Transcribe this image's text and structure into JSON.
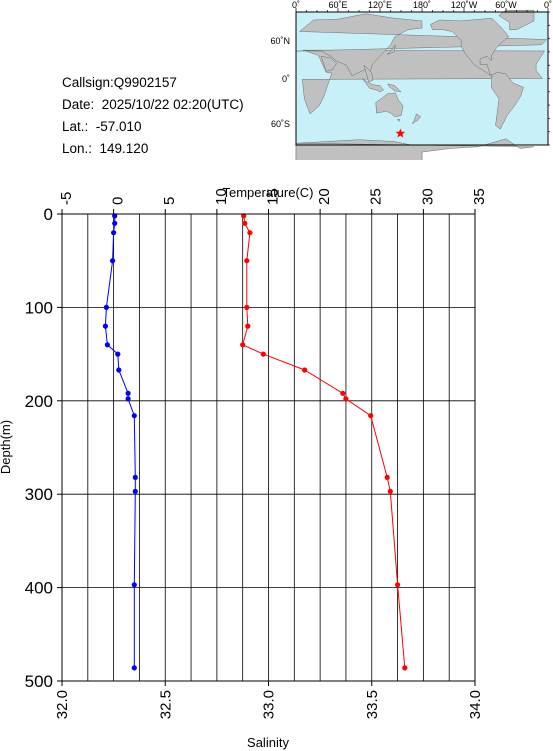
{
  "header": {
    "callsign_line": "Callsign:Q9902157",
    "date_line": "Date:  2025/10/22 02:20(UTC)",
    "lat_line": "Lat.:  -57.010",
    "lon_line": "Lon.:  149.120"
  },
  "map": {
    "top_labels": [
      "0˚",
      "60˚E",
      "120˚E",
      "180˚",
      "120˚W",
      "60˚W",
      "0˚"
    ],
    "right_labels": [
      "60˚N",
      "0˚",
      "60˚S"
    ],
    "marker_lon": 149.12,
    "marker_lat": -57.01,
    "ocean_color": "#c8f0f8",
    "land_color": "#c0c0c0",
    "marker_color": "#ff0000"
  },
  "chart_data": {
    "type": "line",
    "top_axis": {
      "label": "Temperature(C)",
      "range": [
        -5,
        35
      ],
      "ticks": [
        "-5",
        "0",
        "5",
        "10",
        "15",
        "20",
        "25",
        "30",
        "35"
      ]
    },
    "bottom_axis": {
      "label": "Salinity",
      "range": [
        32.0,
        34.0
      ],
      "ticks": [
        "32.0",
        "32.5",
        "33.0",
        "33.5",
        "34.0"
      ]
    },
    "y_axis": {
      "label": "Depth(m)",
      "range": [
        0,
        500
      ],
      "inverted": true,
      "ticks": [
        "0",
        "100",
        "200",
        "300",
        "400",
        "500"
      ]
    },
    "grid": true,
    "series": [
      {
        "axis": "top",
        "color": "#ff0000",
        "points": [
          {
            "x": 12.6,
            "y": 2
          },
          {
            "x": 12.7,
            "y": 10
          },
          {
            "x": 13.2,
            "y": 20
          },
          {
            "x": 12.9,
            "y": 50
          },
          {
            "x": 12.9,
            "y": 100
          },
          {
            "x": 13.0,
            "y": 120
          },
          {
            "x": 12.5,
            "y": 140
          },
          {
            "x": 14.5,
            "y": 150
          },
          {
            "x": 18.5,
            "y": 167
          },
          {
            "x": 22.2,
            "y": 192
          },
          {
            "x": 22.5,
            "y": 198
          },
          {
            "x": 24.9,
            "y": 216
          },
          {
            "x": 26.5,
            "y": 282
          },
          {
            "x": 26.8,
            "y": 297
          },
          {
            "x": 27.5,
            "y": 397
          },
          {
            "x": 28.2,
            "y": 486
          }
        ]
      },
      {
        "axis": "bottom",
        "color": "#0000ff",
        "points": [
          {
            "x": 32.255,
            "y": 2
          },
          {
            "x": 32.255,
            "y": 10
          },
          {
            "x": 32.25,
            "y": 20
          },
          {
            "x": 32.245,
            "y": 50
          },
          {
            "x": 32.215,
            "y": 100
          },
          {
            "x": 32.21,
            "y": 120
          },
          {
            "x": 32.22,
            "y": 140
          },
          {
            "x": 32.27,
            "y": 150
          },
          {
            "x": 32.275,
            "y": 167
          },
          {
            "x": 32.32,
            "y": 192
          },
          {
            "x": 32.32,
            "y": 198
          },
          {
            "x": 32.35,
            "y": 216
          },
          {
            "x": 32.355,
            "y": 282
          },
          {
            "x": 32.355,
            "y": 297
          },
          {
            "x": 32.35,
            "y": 397
          },
          {
            "x": 32.35,
            "y": 486
          }
        ]
      }
    ]
  }
}
